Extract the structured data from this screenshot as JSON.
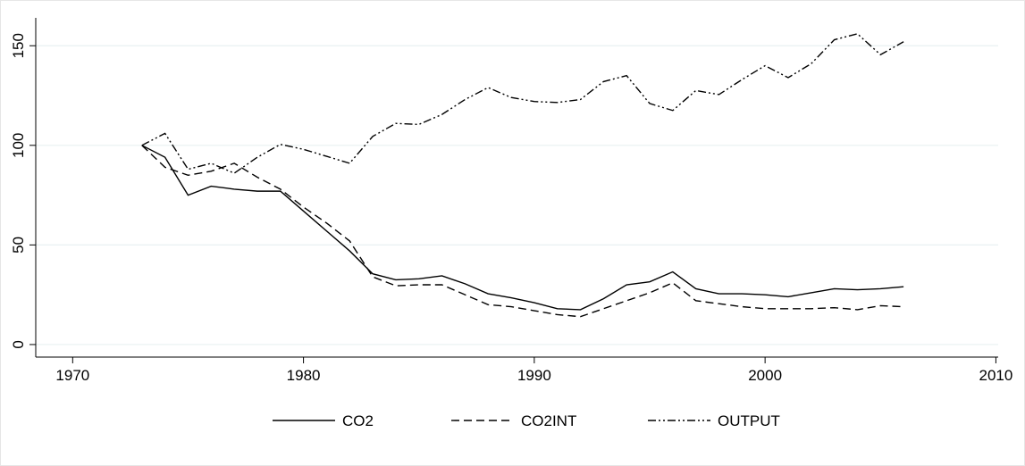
{
  "chart_data": {
    "type": "line",
    "x": [
      1973,
      1974,
      1975,
      1976,
      1977,
      1978,
      1979,
      1980,
      1981,
      1982,
      1983,
      1984,
      1985,
      1986,
      1987,
      1988,
      1989,
      1990,
      1991,
      1992,
      1993,
      1994,
      1995,
      1996,
      1997,
      1998,
      1999,
      2000,
      2001,
      2002,
      2003,
      2004,
      2005,
      2006
    ],
    "series": [
      {
        "name": "CO2",
        "color": "#000000",
        "dash": "none",
        "values": [
          100,
          94,
          75,
          79.5,
          78,
          77,
          77,
          67,
          57,
          47,
          35.5,
          32.5,
          33,
          34.5,
          30.5,
          25.5,
          23.5,
          21,
          18,
          17.5,
          23,
          30,
          31.5,
          36.5,
          28,
          25.5,
          25.5,
          25,
          24,
          26,
          28,
          27.5,
          28,
          29
        ]
      },
      {
        "name": "CO2INT",
        "color": "#000000",
        "dash": "9 5",
        "values": [
          100,
          89,
          85,
          87,
          91,
          84,
          78,
          69,
          61,
          52,
          34,
          29.5,
          30,
          30,
          25,
          20,
          19,
          17,
          15,
          14,
          18,
          22,
          26,
          31,
          22,
          20.5,
          19,
          18,
          18,
          18,
          18.5,
          17.5,
          19.5,
          19
        ]
      },
      {
        "name": "OUTPUT",
        "color": "#000000",
        "dash": "9 3 2 3 2 3",
        "values": [
          100,
          106,
          88,
          91,
          86,
          94,
          100.5,
          98,
          94.5,
          91,
          104.5,
          111,
          110.5,
          115.5,
          123,
          129,
          124,
          122,
          121.5,
          123,
          132,
          135,
          121,
          117.5,
          127.5,
          125.5,
          133,
          140,
          134,
          141,
          153,
          156,
          145.5,
          152
        ]
      }
    ],
    "xlim": [
      1968.4,
      2010.1
    ],
    "xticks": [
      1970,
      1980,
      1990,
      2000,
      2010
    ],
    "ylim": [
      -6.3,
      164
    ],
    "yticks": [
      0,
      50,
      100,
      150
    ],
    "grid": true,
    "legend": "bottom"
  }
}
